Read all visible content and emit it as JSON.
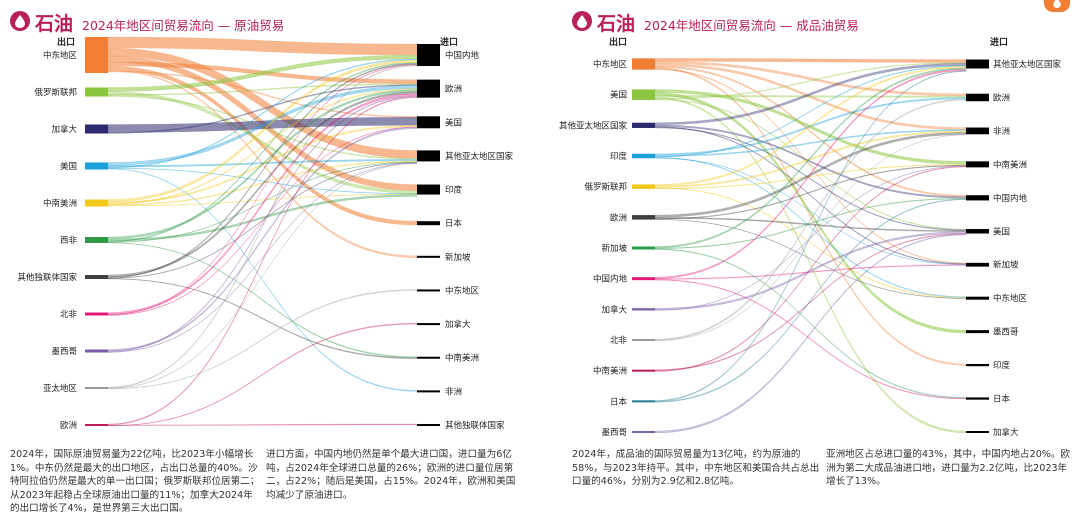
{
  "brand": "石油",
  "colors": {
    "accent": "#b8205a",
    "badge": "#f07e35",
    "dest": "#000000"
  },
  "icons": {
    "brand": "oil-drop-icon",
    "badge": "oil-drop-icon"
  },
  "panels": [
    {
      "title": "2024年地区间贸易流向 — 原油贸易",
      "export_label": "出口",
      "import_label": "进口",
      "desc_left": "2024年，国际原油贸易量为22亿吨，比2023年小幅增长1%。中东仍然是最大的出口地区，占出口总量的40%。沙特阿拉伯仍然是最大的单一出口国；俄罗斯联邦位居第二；从2023年起稳占全球原油出口量的11%；加拿大2024年的出口增长了4%，是世界第三大出口国。",
      "desc_right": "进口方面，中国内地仍然是单个最大进口国，进口量为6亿吨，占2024年全球进口总量的26%；欧洲的进口量位居第二，占22%；随后是美国，占15%。2024年，欧洲和美国均减少了原油进口。",
      "chart_data": {
        "type": "sankey",
        "title": "2024年地区间贸易流向 — 原油贸易",
        "sources": [
          {
            "name": "中东地区",
            "color": "#f07e35",
            "weight": 36
          },
          {
            "name": "俄罗斯联邦",
            "color": "#8cc63f",
            "weight": 9
          },
          {
            "name": "加拿大",
            "color": "#2d2a6e",
            "weight": 9
          },
          {
            "name": "美国",
            "color": "#1ba1d8",
            "weight": 7
          },
          {
            "name": "中南美洲",
            "color": "#f2c81c",
            "weight": 7
          },
          {
            "name": "西非",
            "color": "#2e9a48",
            "weight": 6
          },
          {
            "name": "其他独联体国家",
            "color": "#3f3f3f",
            "weight": 4
          },
          {
            "name": "北非",
            "color": "#e5187a",
            "weight": 3
          },
          {
            "name": "墨西哥",
            "color": "#7a5ca6",
            "weight": 3
          },
          {
            "name": "亚太地区",
            "color": "#9a9a9a",
            "weight": 2
          },
          {
            "name": "欧洲",
            "color": "#c2185b",
            "weight": 2
          }
        ],
        "targets": [
          {
            "name": "中国内地",
            "weight": 22
          },
          {
            "name": "欧洲",
            "weight": 18
          },
          {
            "name": "美国",
            "weight": 12
          },
          {
            "name": "其他亚太地区国家",
            "weight": 11
          },
          {
            "name": "印度",
            "weight": 10
          },
          {
            "name": "日本",
            "weight": 4
          },
          {
            "name": "新加坡",
            "weight": 1
          },
          {
            "name": "中东地区",
            "weight": 1
          },
          {
            "name": "加拿大",
            "weight": 1
          },
          {
            "name": "中南美洲",
            "weight": 1
          },
          {
            "name": "非洲",
            "weight": 1
          },
          {
            "name": "其他独联体国家",
            "weight": 1
          }
        ],
        "flows": [
          [
            0,
            0,
            11
          ],
          [
            0,
            3,
            8
          ],
          [
            0,
            4,
            6
          ],
          [
            0,
            1,
            4
          ],
          [
            0,
            5,
            4
          ],
          [
            0,
            6,
            1
          ],
          [
            0,
            2,
            1
          ],
          [
            1,
            0,
            4
          ],
          [
            1,
            4,
            3
          ],
          [
            1,
            1,
            1
          ],
          [
            1,
            3,
            1
          ],
          [
            2,
            2,
            8
          ],
          [
            2,
            1,
            1
          ],
          [
            3,
            1,
            3
          ],
          [
            3,
            3,
            1.5
          ],
          [
            3,
            0,
            1
          ],
          [
            3,
            4,
            0.5
          ],
          [
            3,
            10,
            0.5
          ],
          [
            4,
            0,
            2.5
          ],
          [
            4,
            2,
            1.5
          ],
          [
            4,
            1,
            1
          ],
          [
            4,
            3,
            1
          ],
          [
            4,
            4,
            0.5
          ],
          [
            5,
            1,
            2
          ],
          [
            5,
            4,
            2
          ],
          [
            5,
            0,
            1
          ],
          [
            5,
            3,
            0.5
          ],
          [
            5,
            9,
            0.5
          ],
          [
            6,
            1,
            2
          ],
          [
            6,
            0,
            1
          ],
          [
            6,
            3,
            0.5
          ],
          [
            6,
            9,
            0.5
          ],
          [
            7,
            1,
            2
          ],
          [
            7,
            0,
            0.5
          ],
          [
            7,
            2,
            0.5
          ],
          [
            8,
            2,
            1.5
          ],
          [
            8,
            1,
            1
          ],
          [
            8,
            3,
            0.5
          ],
          [
            9,
            0,
            1
          ],
          [
            9,
            3,
            0.5
          ],
          [
            9,
            7,
            0.5
          ],
          [
            10,
            1,
            1
          ],
          [
            10,
            11,
            0.5
          ],
          [
            10,
            8,
            0.5
          ]
        ]
      }
    },
    {
      "title": "2024年地区间贸易流向 — 成品油贸易",
      "export_label": "出口",
      "import_label": "进口",
      "desc_left": "2024年，成品油的国际贸易量为13亿吨，约为原油的58%，与2023年持平。其中，中东地区和美国合共占总出口量的46%，分别为2.9亿和2.8亿吨。",
      "desc_right": "亚洲地区占总进口量的43%，其中，中国内地占20%。欧洲为第二大成品油进口地，进口量为2.2亿吨，比2023年增长了13%。",
      "chart_data": {
        "type": "sankey",
        "title": "2024年地区间贸易流向 — 成品油贸易",
        "sources": [
          {
            "name": "中东地区",
            "color": "#f07e35",
            "weight": 15
          },
          {
            "name": "美国",
            "color": "#8cc63f",
            "weight": 14
          },
          {
            "name": "其他亚太地区国家",
            "color": "#2d2a6e",
            "weight": 7
          },
          {
            "name": "印度",
            "color": "#1ba1d8",
            "weight": 6
          },
          {
            "name": "俄罗斯联邦",
            "color": "#f2c81c",
            "weight": 6
          },
          {
            "name": "欧洲",
            "color": "#3f3f3f",
            "weight": 6
          },
          {
            "name": "新加坡",
            "color": "#2e9a48",
            "weight": 4
          },
          {
            "name": "中国内地",
            "color": "#e5187a",
            "weight": 4
          },
          {
            "name": "加拿大",
            "color": "#7a5ca6",
            "weight": 3
          },
          {
            "name": "北非",
            "color": "#9a9a9a",
            "weight": 2
          },
          {
            "name": "中南美洲",
            "color": "#c2185b",
            "weight": 2
          },
          {
            "name": "日本",
            "color": "#1f7a8c",
            "weight": 2
          },
          {
            "name": "墨西哥",
            "color": "#6d6aa8",
            "weight": 1
          }
        ],
        "targets": [
          {
            "name": "其他亚太地区国家",
            "weight": 12
          },
          {
            "name": "欧洲",
            "weight": 10
          },
          {
            "name": "非洲",
            "weight": 9
          },
          {
            "name": "中南美洲",
            "weight": 8
          },
          {
            "name": "中国内地",
            "weight": 7
          },
          {
            "name": "美国",
            "weight": 6
          },
          {
            "name": "新加坡",
            "weight": 5
          },
          {
            "name": "中东地区",
            "weight": 4
          },
          {
            "name": "墨西哥",
            "weight": 4
          },
          {
            "name": "印度",
            "weight": 3
          },
          {
            "name": "日本",
            "weight": 3
          },
          {
            "name": "加拿大",
            "weight": 2
          }
        ],
        "flows": [
          [
            0,
            0,
            4
          ],
          [
            0,
            1,
            3
          ],
          [
            0,
            2,
            3
          ],
          [
            0,
            4,
            2
          ],
          [
            0,
            9,
            2
          ],
          [
            0,
            6,
            1
          ],
          [
            1,
            3,
            4
          ],
          [
            1,
            8,
            4
          ],
          [
            1,
            1,
            2
          ],
          [
            1,
            11,
            2
          ],
          [
            1,
            0,
            1
          ],
          [
            1,
            5,
            1
          ],
          [
            2,
            0,
            3
          ],
          [
            2,
            4,
            2
          ],
          [
            2,
            6,
            1
          ],
          [
            2,
            5,
            1
          ],
          [
            3,
            1,
            2
          ],
          [
            3,
            2,
            1.5
          ],
          [
            3,
            0,
            1
          ],
          [
            3,
            7,
            1
          ],
          [
            3,
            6,
            0.5
          ],
          [
            4,
            0,
            2
          ],
          [
            4,
            2,
            2
          ],
          [
            4,
            7,
            1
          ],
          [
            4,
            3,
            1
          ],
          [
            5,
            2,
            3
          ],
          [
            5,
            5,
            1.5
          ],
          [
            5,
            3,
            1
          ],
          [
            5,
            7,
            0.5
          ],
          [
            6,
            0,
            2
          ],
          [
            6,
            4,
            1
          ],
          [
            6,
            10,
            1
          ],
          [
            7,
            0,
            2
          ],
          [
            7,
            6,
            1
          ],
          [
            7,
            10,
            1
          ],
          [
            8,
            5,
            2.5
          ],
          [
            8,
            3,
            0.5
          ],
          [
            9,
            1,
            1.5
          ],
          [
            9,
            2,
            0.5
          ],
          [
            10,
            5,
            1
          ],
          [
            10,
            3,
            1
          ],
          [
            11,
            0,
            1
          ],
          [
            11,
            4,
            1
          ],
          [
            12,
            5,
            1
          ]
        ]
      }
    }
  ]
}
